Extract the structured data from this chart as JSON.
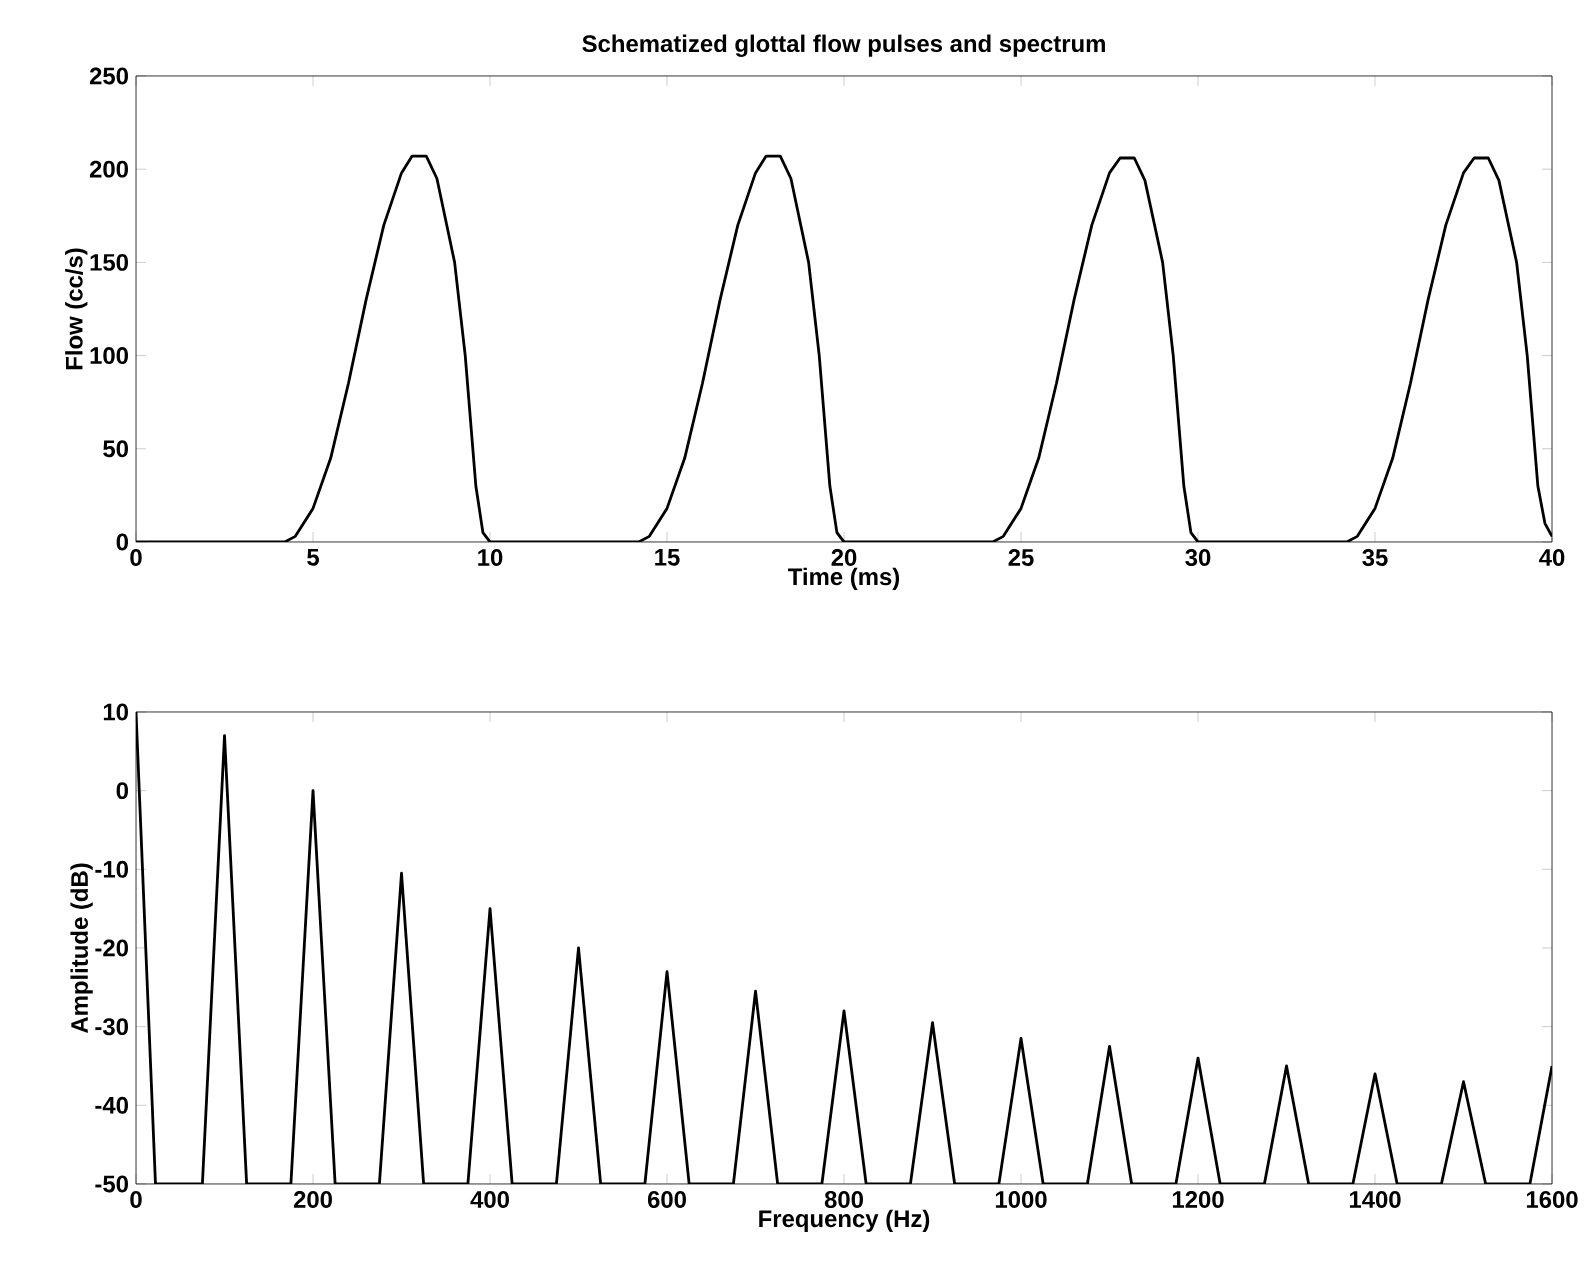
{
  "chart_data": [
    {
      "type": "line",
      "title": "Schematized glottal flow pulses and spectrum",
      "xlabel": "Time (ms)",
      "ylabel": "Flow (cc/s)",
      "xlim": [
        0,
        40
      ],
      "ylim": [
        0,
        250
      ],
      "xticks": [
        0,
        5,
        10,
        15,
        20,
        25,
        30,
        35,
        40
      ],
      "yticks": [
        0,
        50,
        100,
        150,
        200,
        250
      ],
      "series": [
        {
          "color": "#000000",
          "x": [
            0,
            4.2,
            4.5,
            5,
            5.5,
            6,
            6.5,
            7,
            7.5,
            7.8,
            8.2,
            8.5,
            9,
            9.3,
            9.6,
            9.8,
            10,
            14.2,
            14.5,
            15,
            15.5,
            16,
            16.5,
            17,
            17.5,
            17.8,
            18.2,
            18.5,
            19,
            19.3,
            19.6,
            19.8,
            20,
            24.2,
            24.5,
            25,
            25.5,
            26,
            26.5,
            27,
            27.5,
            27.8,
            28.2,
            28.5,
            29,
            29.3,
            29.6,
            29.8,
            30,
            34.2,
            34.5,
            35,
            35.5,
            36,
            36.5,
            37,
            37.5,
            37.8,
            38.2,
            38.5,
            39,
            39.3,
            39.6,
            39.8,
            40
          ],
          "values": [
            0,
            0,
            3,
            18,
            45,
            85,
            130,
            170,
            198,
            207,
            207,
            195,
            150,
            100,
            30,
            5,
            0,
            0,
            3,
            18,
            45,
            85,
            130,
            170,
            198,
            207,
            207,
            195,
            150,
            100,
            30,
            5,
            0,
            0,
            3,
            18,
            45,
            85,
            130,
            170,
            198,
            206,
            206,
            194,
            150,
            100,
            30,
            5,
            0,
            0,
            3,
            18,
            45,
            85,
            130,
            170,
            198,
            206,
            206,
            194,
            150,
            100,
            30,
            10,
            3
          ]
        }
      ]
    },
    {
      "type": "line",
      "xlabel": "Frequency (Hz)",
      "ylabel": "Amplitude (dB)",
      "xlim": [
        0,
        1600
      ],
      "ylim": [
        -50,
        10
      ],
      "xticks": [
        0,
        200,
        400,
        600,
        800,
        1000,
        1200,
        1400,
        1600
      ],
      "yticks": [
        -50,
        -40,
        -30,
        -20,
        -10,
        0,
        10
      ],
      "series": [
        {
          "color": "#000000",
          "x": [
            0,
            22,
            75,
            100,
            125,
            175,
            200,
            225,
            275,
            300,
            325,
            375,
            400,
            425,
            475,
            500,
            525,
            575,
            600,
            625,
            675,
            700,
            725,
            775,
            800,
            825,
            875,
            900,
            925,
            975,
            1000,
            1025,
            1075,
            1100,
            1125,
            1175,
            1200,
            1225,
            1275,
            1300,
            1325,
            1375,
            1400,
            1425,
            1475,
            1500,
            1525,
            1575,
            1600
          ],
          "values": [
            10,
            -50,
            -50,
            7,
            -50,
            -50,
            0,
            -50,
            -50,
            -10.5,
            -50,
            -50,
            -15,
            -50,
            -50,
            -20,
            -50,
            -50,
            -23,
            -50,
            -50,
            -25.5,
            -50,
            -50,
            -28,
            -50,
            -50,
            -29.5,
            -50,
            -50,
            -31.5,
            -50,
            -50,
            -32.5,
            -50,
            -50,
            -34,
            -50,
            -50,
            -35,
            -50,
            -50,
            -36,
            -50,
            -50,
            -37,
            -50,
            -50,
            -35
          ]
        }
      ]
    }
  ]
}
